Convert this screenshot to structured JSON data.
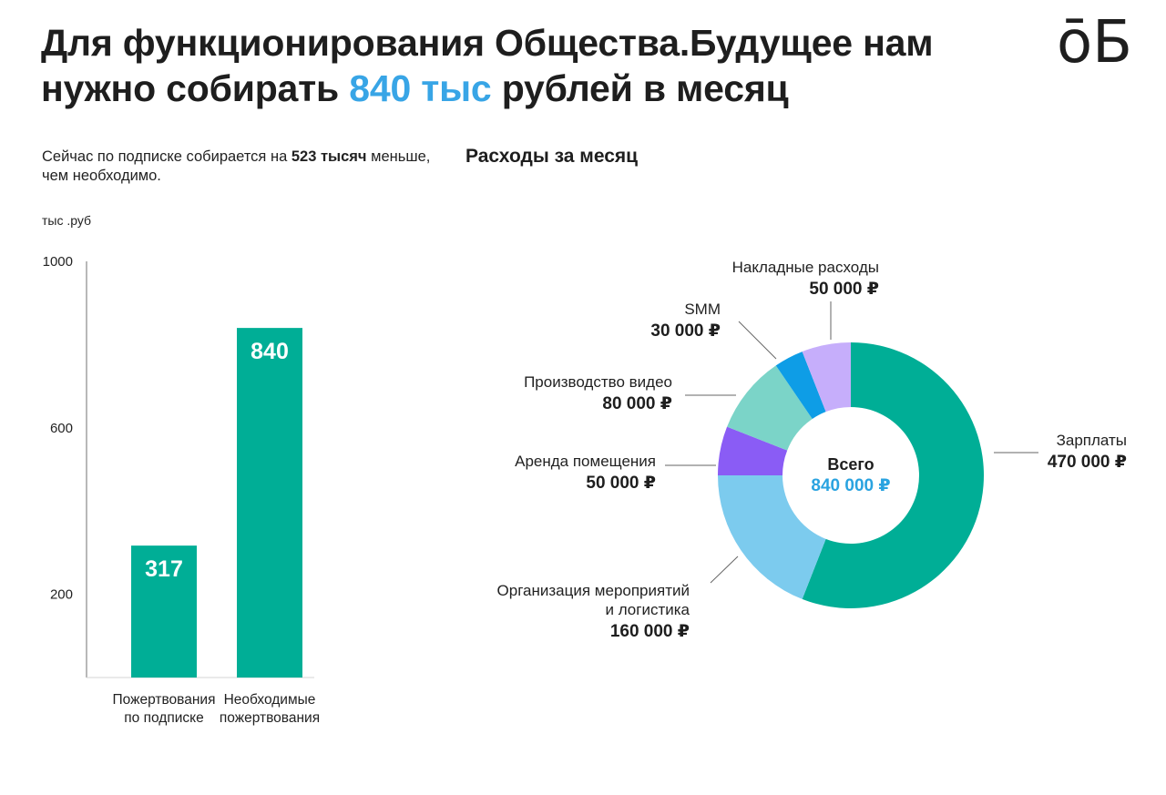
{
  "headline": {
    "before": "Для функционирования Общества.Будущее нам нужно собирать ",
    "accent": "840 тыс",
    "after": " рублей в месяц"
  },
  "logo": "ōБ",
  "subtitle": {
    "before": "Сейчас по подписке собирается на ",
    "bold": "523 тысяч",
    "after": " меньше, чем необходимо."
  },
  "unit_label": "тыс .руб",
  "pie_title": "Расходы за месяц",
  "colors": {
    "accent": "#38a5e6",
    "bar": "#00ae96",
    "text": "#1e1e1e"
  },
  "chart_data": [
    {
      "type": "bar",
      "categories": [
        [
          "Пожертвования",
          "по подписке"
        ],
        [
          "Необходимые",
          "пожертвования"
        ]
      ],
      "values": [
        317,
        840
      ],
      "data_labels": [
        "317",
        "840"
      ],
      "yticks": [
        200,
        600,
        1000
      ],
      "ytick_labels": [
        "200",
        "600",
        "1000"
      ],
      "ylim": [
        0,
        1000
      ],
      "ylabel": "тыс .руб",
      "grid": false
    },
    {
      "type": "pie",
      "donut": true,
      "center": {
        "title": "Всего",
        "value": "840 000 ₽"
      },
      "slices": [
        {
          "name": [
            "Зарплаты"
          ],
          "value": 470000,
          "label": "470 000 ₽",
          "color": "#00ae96"
        },
        {
          "name": [
            "Организация мероприятий",
            "и логистика"
          ],
          "value": 160000,
          "label": "160 000 ₽",
          "color": "#7ccbee"
        },
        {
          "name": [
            "Аренда помещения"
          ],
          "value": 50000,
          "label": "50 000 ₽",
          "color": "#8a5cf5"
        },
        {
          "name": [
            "Производство видео"
          ],
          "value": 80000,
          "label": "80 000 ₽",
          "color": "#7bd4c8"
        },
        {
          "name": [
            "SMM"
          ],
          "value": 30000,
          "label": "30 000 ₽",
          "color": "#0e9de6"
        },
        {
          "name": [
            "Накладные расходы"
          ],
          "value": 50000,
          "label": "50 000 ₽",
          "color": "#c6aefb"
        }
      ]
    }
  ]
}
